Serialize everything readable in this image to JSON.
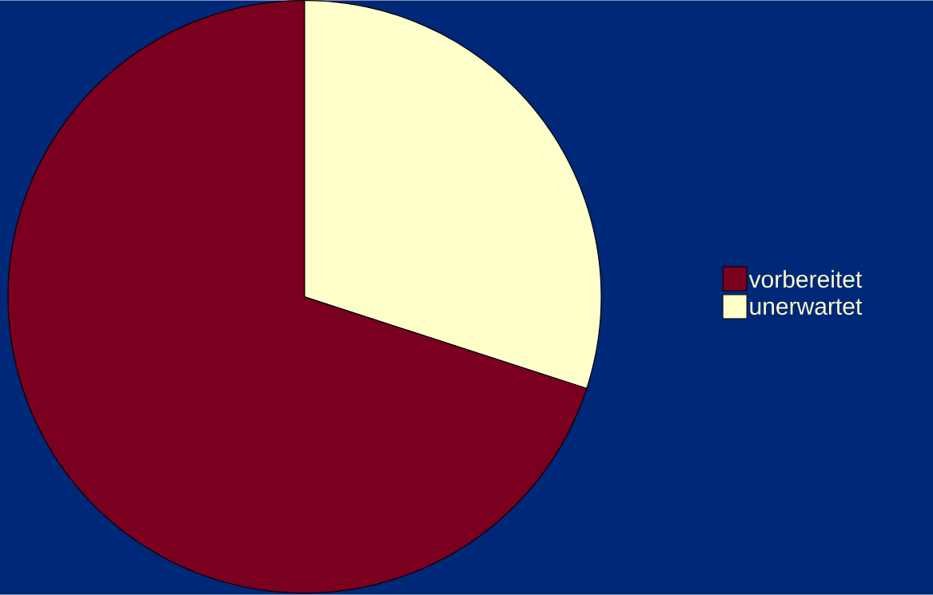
{
  "chart_data": {
    "type": "pie",
    "categories": [
      "vorbereitet",
      "unerwartet"
    ],
    "values": [
      70,
      30
    ],
    "colors": [
      "#7b0020",
      "#ffffcc"
    ],
    "legend": "right"
  }
}
